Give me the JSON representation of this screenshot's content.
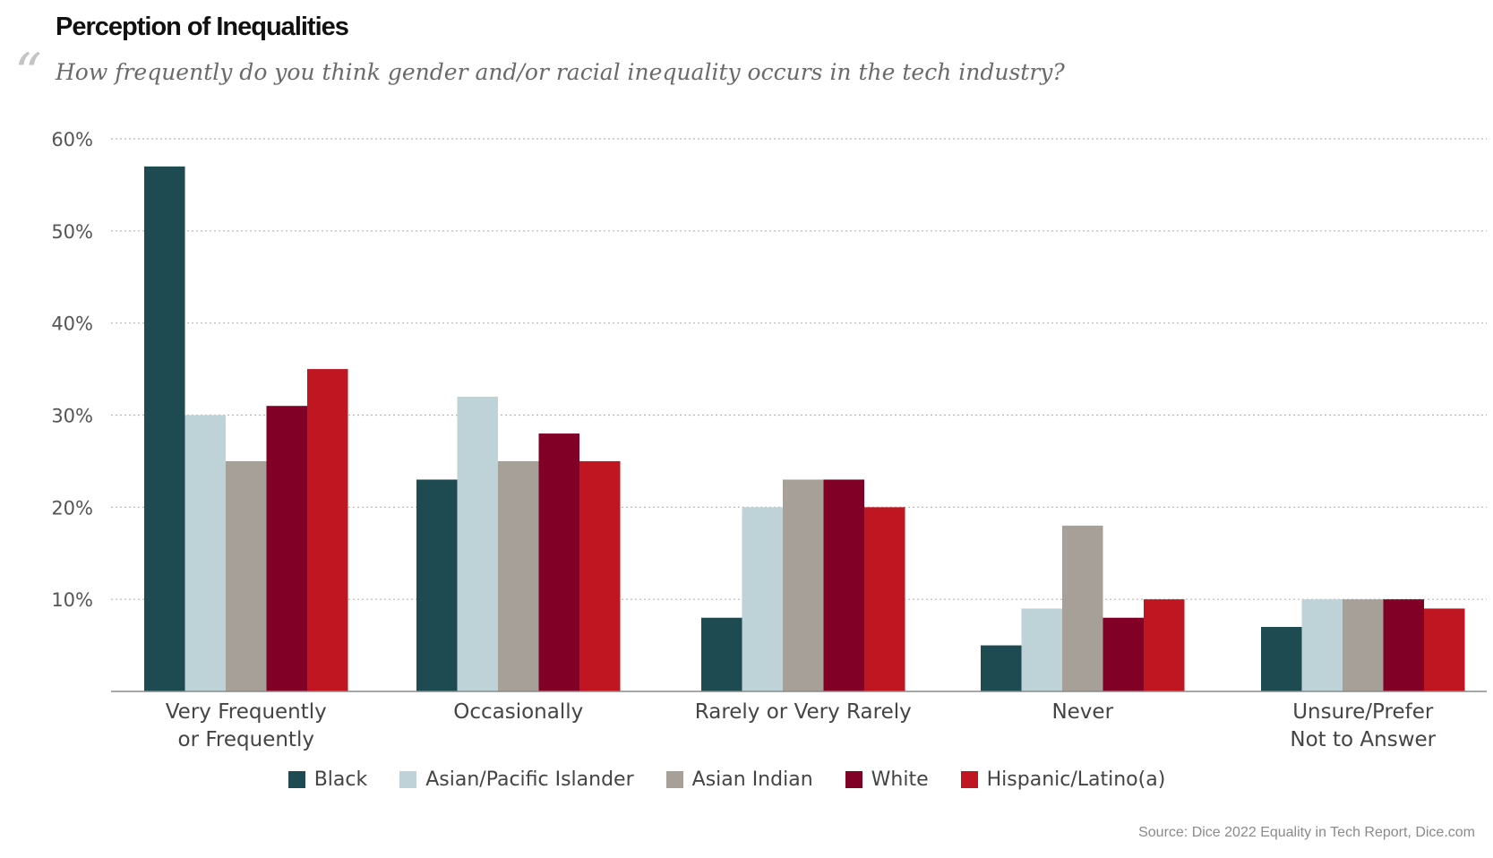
{
  "title": "Perception of Inequalities",
  "quote_mark": "“",
  "subtitle": "How frequently do you think gender and/or racial inequality occurs in the tech industry?",
  "source": "Source: Dice 2022 Equality in Tech Report, Dice.com",
  "chart_data": {
    "type": "bar",
    "categories": [
      [
        "Very Frequently",
        "or Frequently"
      ],
      [
        "Occasionally"
      ],
      [
        "Rarely or Very Rarely"
      ],
      [
        "Never"
      ],
      [
        "Unsure/Prefer",
        "Not to Answer"
      ]
    ],
    "series": [
      {
        "name": "Black",
        "color": "#1e4a51",
        "values": [
          57,
          23,
          8,
          5,
          7
        ]
      },
      {
        "name": "Asian/Pacific Islander",
        "color": "#bed3d7",
        "values": [
          30,
          32,
          20,
          9,
          10
        ]
      },
      {
        "name": "Asian Indian",
        "color": "#a6a099",
        "values": [
          25,
          25,
          23,
          18,
          10
        ]
      },
      {
        "name": "White",
        "color": "#800026",
        "values": [
          31,
          28,
          23,
          8,
          10
        ]
      },
      {
        "name": "Hispanic/Latino(a)",
        "color": "#c01622",
        "values": [
          35,
          25,
          20,
          10,
          9
        ]
      }
    ],
    "yticks": [
      "10%",
      "20%",
      "30%",
      "40%",
      "50%",
      "60%"
    ],
    "ytick_values": [
      10,
      20,
      30,
      40,
      50,
      60
    ],
    "ylim": [
      0,
      60
    ],
    "grid": true,
    "legend_position": "bottom"
  }
}
